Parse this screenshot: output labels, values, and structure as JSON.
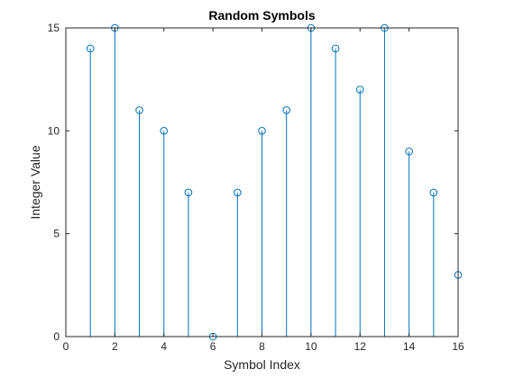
{
  "chart_data": {
    "type": "stem",
    "title": "Random Symbols",
    "xlabel": "Symbol Index",
    "ylabel": "Integer Value",
    "xlim": [
      0,
      16
    ],
    "ylim": [
      0,
      15
    ],
    "xticks": [
      0,
      2,
      4,
      6,
      8,
      10,
      12,
      14,
      16
    ],
    "yticks": [
      0,
      5,
      10,
      15
    ],
    "grid": false,
    "color": "#0072BD",
    "marker": "open-circle",
    "x": [
      1,
      2,
      3,
      4,
      5,
      6,
      7,
      8,
      9,
      10,
      11,
      12,
      13,
      14,
      15,
      16
    ],
    "y": [
      14,
      15,
      11,
      10,
      7,
      0,
      7,
      10,
      11,
      15,
      14,
      12,
      15,
      9,
      7,
      3
    ]
  }
}
